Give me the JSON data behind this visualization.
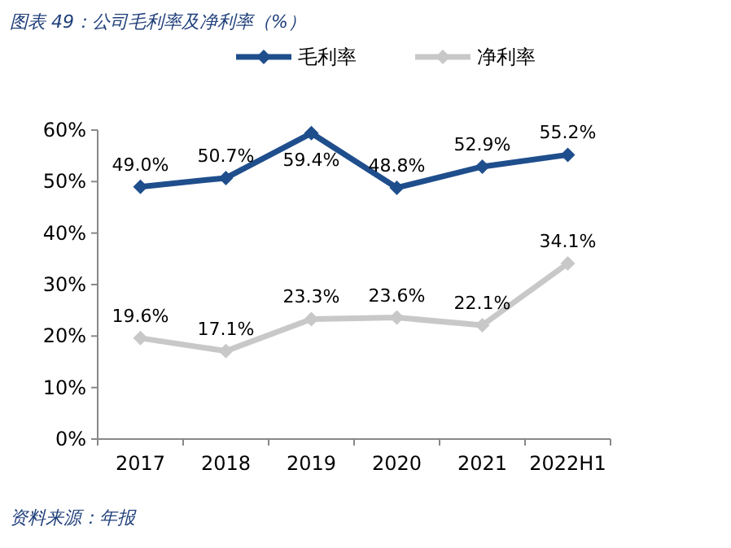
{
  "chart_data": {
    "type": "line",
    "title": "图表 49：公司毛利率及净利率（%）",
    "categories": [
      "2017",
      "2018",
      "2019",
      "2020",
      "2021",
      "2022H1"
    ],
    "series": [
      {
        "name": "毛利率",
        "color": "#1f4e8c",
        "values": [
          49.0,
          50.7,
          59.4,
          48.8,
          52.9,
          55.2
        ],
        "value_labels": [
          "49.0%",
          "50.7%",
          "59.4%",
          "48.8%",
          "52.9%",
          "55.2%"
        ]
      },
      {
        "name": "净利率",
        "color": "#c8c8c8",
        "values": [
          19.6,
          17.1,
          23.3,
          23.6,
          22.1,
          34.1
        ],
        "value_labels": [
          "19.6%",
          "17.1%",
          "23.3%",
          "23.6%",
          "22.1%",
          "34.1%"
        ]
      }
    ],
    "ylim": [
      0,
      60
    ],
    "yticks": [
      {
        "value": 0,
        "label": "0%"
      },
      {
        "value": 10,
        "label": "10%"
      },
      {
        "value": 20,
        "label": "20%"
      },
      {
        "value": 30,
        "label": "30%"
      },
      {
        "value": 40,
        "label": "40%"
      },
      {
        "value": 50,
        "label": "50%"
      },
      {
        "value": 60,
        "label": "60%"
      }
    ],
    "legend": "top",
    "marker": "diamond",
    "grid": false,
    "annotations": [
      "资料来源：年报"
    ]
  }
}
